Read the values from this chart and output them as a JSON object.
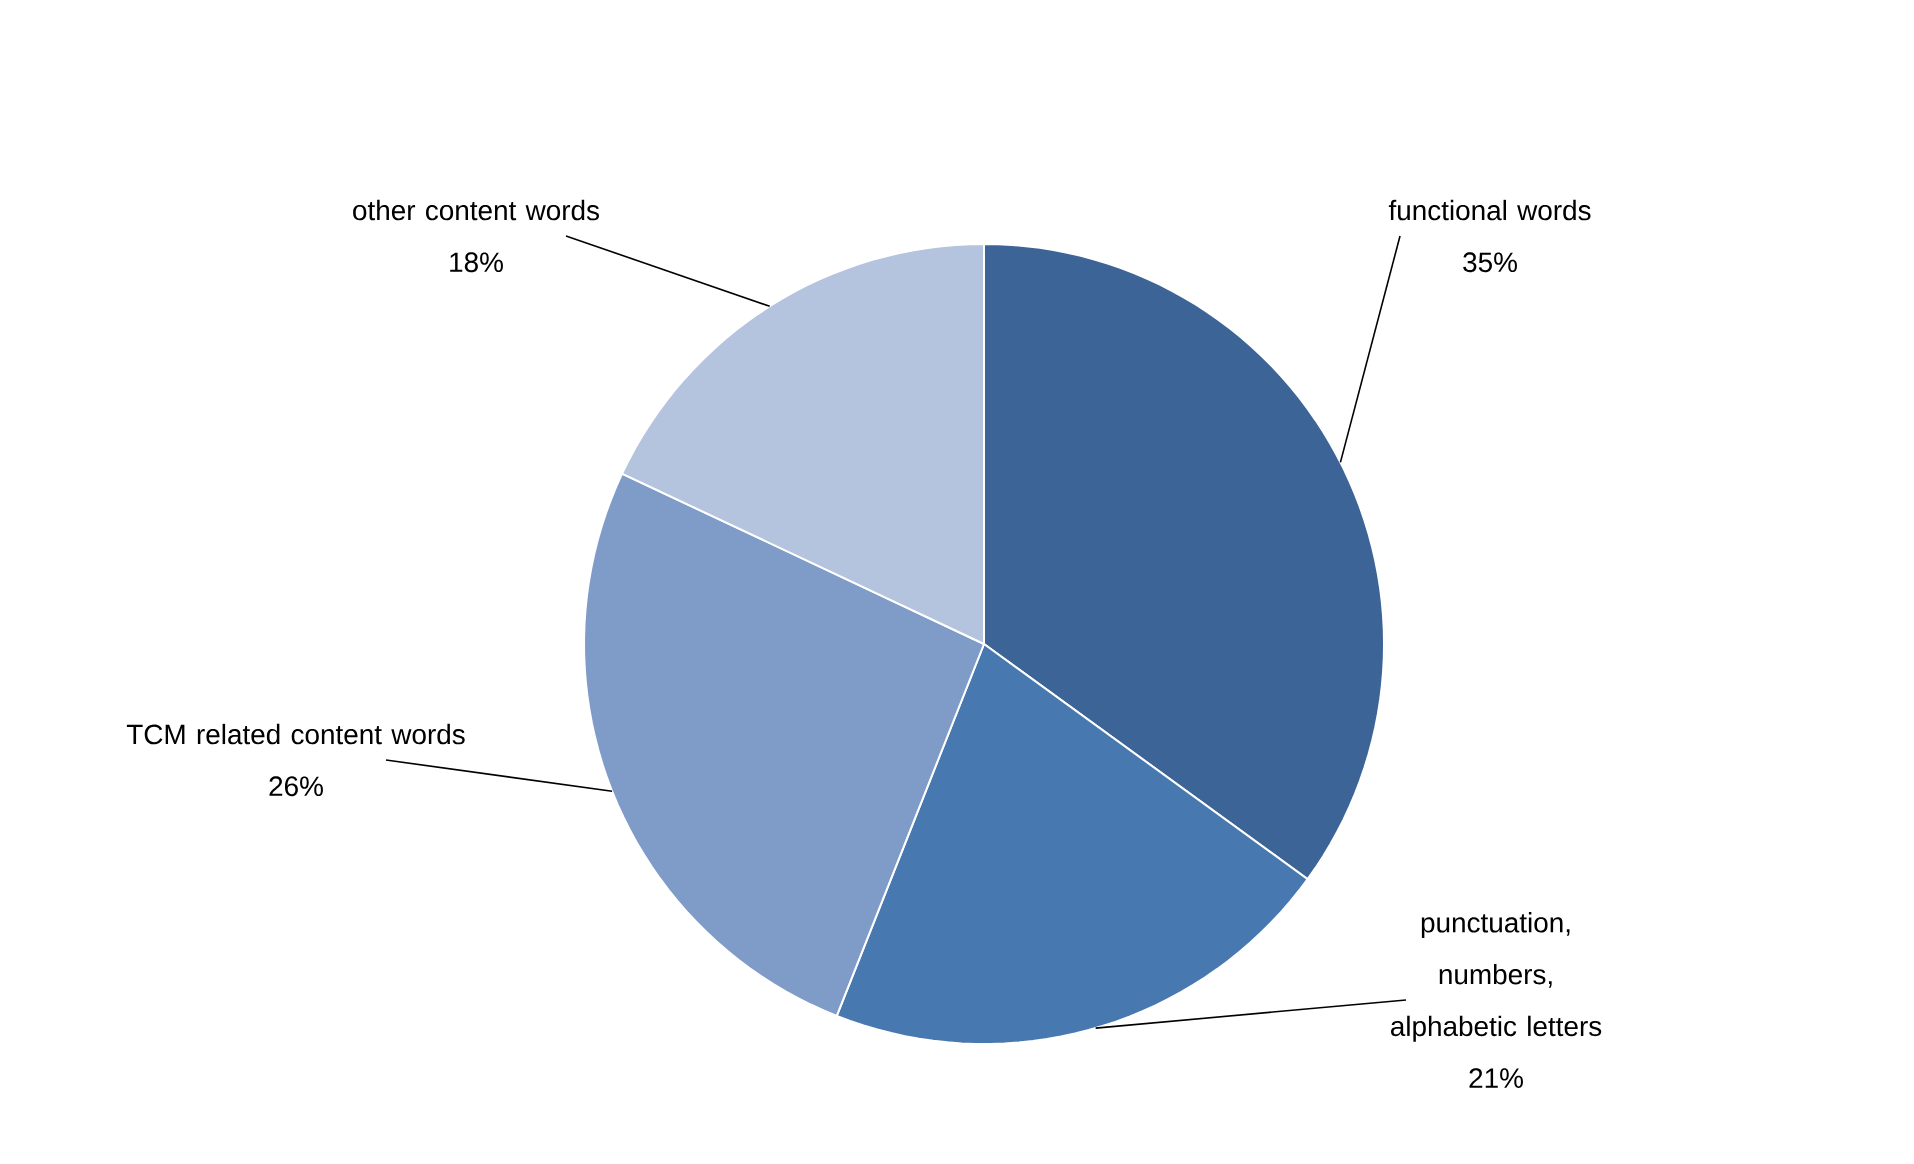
{
  "chart_data": {
    "type": "pie",
    "categories": [
      "functional words",
      "punctuation, numbers, alphabetic letters",
      "TCM related content words",
      "other content words"
    ],
    "values": [
      35,
      21,
      26,
      18
    ],
    "value_labels": [
      "35%",
      "21%",
      "26%",
      "18%"
    ],
    "colors": [
      "#3c6496",
      "#4878b0",
      "#7f9cc9",
      "#b4c3de"
    ],
    "legend": false
  }
}
